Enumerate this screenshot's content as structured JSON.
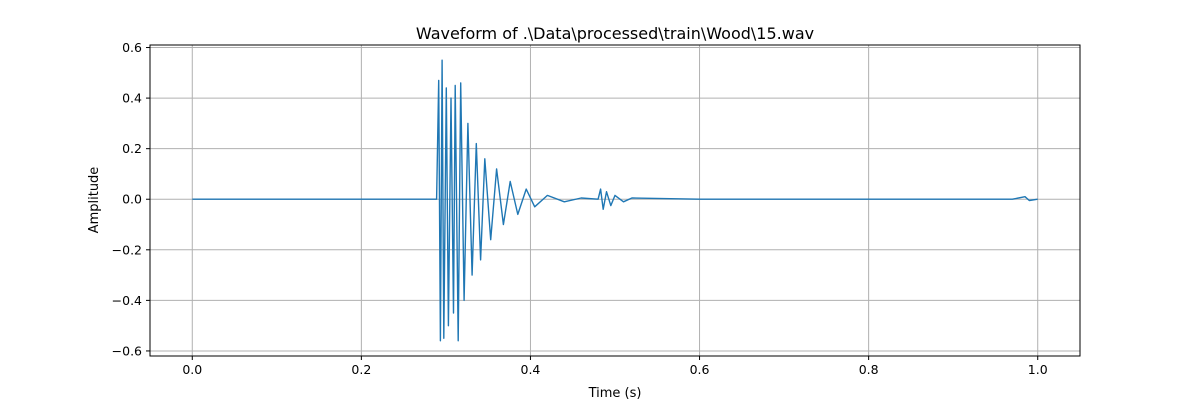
{
  "chart_data": {
    "type": "line",
    "title": "Waveform of .\\Data\\processed\\train\\Wood\\15.wav",
    "xlabel": "Time (s)",
    "ylabel": "Amplitude",
    "xlim": [
      -0.05,
      1.05
    ],
    "ylim": [
      -0.62,
      0.61
    ],
    "xticks": [
      0.0,
      0.2,
      0.4,
      0.6,
      0.8,
      1.0
    ],
    "xtick_labels": [
      "0.0",
      "0.2",
      "0.4",
      "0.6",
      "0.8",
      "1.0"
    ],
    "yticks": [
      -0.6,
      -0.4,
      -0.2,
      0.0,
      0.2,
      0.4,
      0.6
    ],
    "ytick_labels": [
      "−0.6",
      "−0.4",
      "−0.2",
      "0.0",
      "0.2",
      "0.4",
      "0.6"
    ],
    "grid": true,
    "line_color": "#1f77b4",
    "series": [
      {
        "x": [
          0.0,
          0.1,
          0.2,
          0.28,
          0.289,
          0.2915,
          0.2935,
          0.2955,
          0.2975,
          0.3005,
          0.303,
          0.306,
          0.309,
          0.311,
          0.3145,
          0.3175,
          0.3215,
          0.326,
          0.331,
          0.336,
          0.341,
          0.346,
          0.353,
          0.36,
          0.368,
          0.376,
          0.385,
          0.395,
          0.405,
          0.42,
          0.44,
          0.46,
          0.48,
          0.483,
          0.486,
          0.49,
          0.495,
          0.5,
          0.51,
          0.52,
          0.6,
          0.7,
          0.8,
          0.9,
          0.97,
          0.985,
          0.99,
          1.0
        ],
        "y": [
          0.0,
          0.0,
          0.0,
          0.0,
          0.0,
          0.47,
          -0.56,
          0.55,
          -0.55,
          0.44,
          -0.5,
          0.4,
          -0.45,
          0.45,
          -0.56,
          0.46,
          -0.4,
          0.3,
          -0.3,
          0.22,
          -0.24,
          0.16,
          -0.16,
          0.12,
          -0.1,
          0.07,
          -0.06,
          0.04,
          -0.03,
          0.015,
          -0.01,
          0.005,
          0.0,
          0.04,
          -0.04,
          0.03,
          -0.025,
          0.015,
          -0.01,
          0.005,
          0.0,
          0.0,
          0.0,
          0.0,
          0.0,
          0.01,
          -0.005,
          0.0
        ]
      }
    ]
  }
}
